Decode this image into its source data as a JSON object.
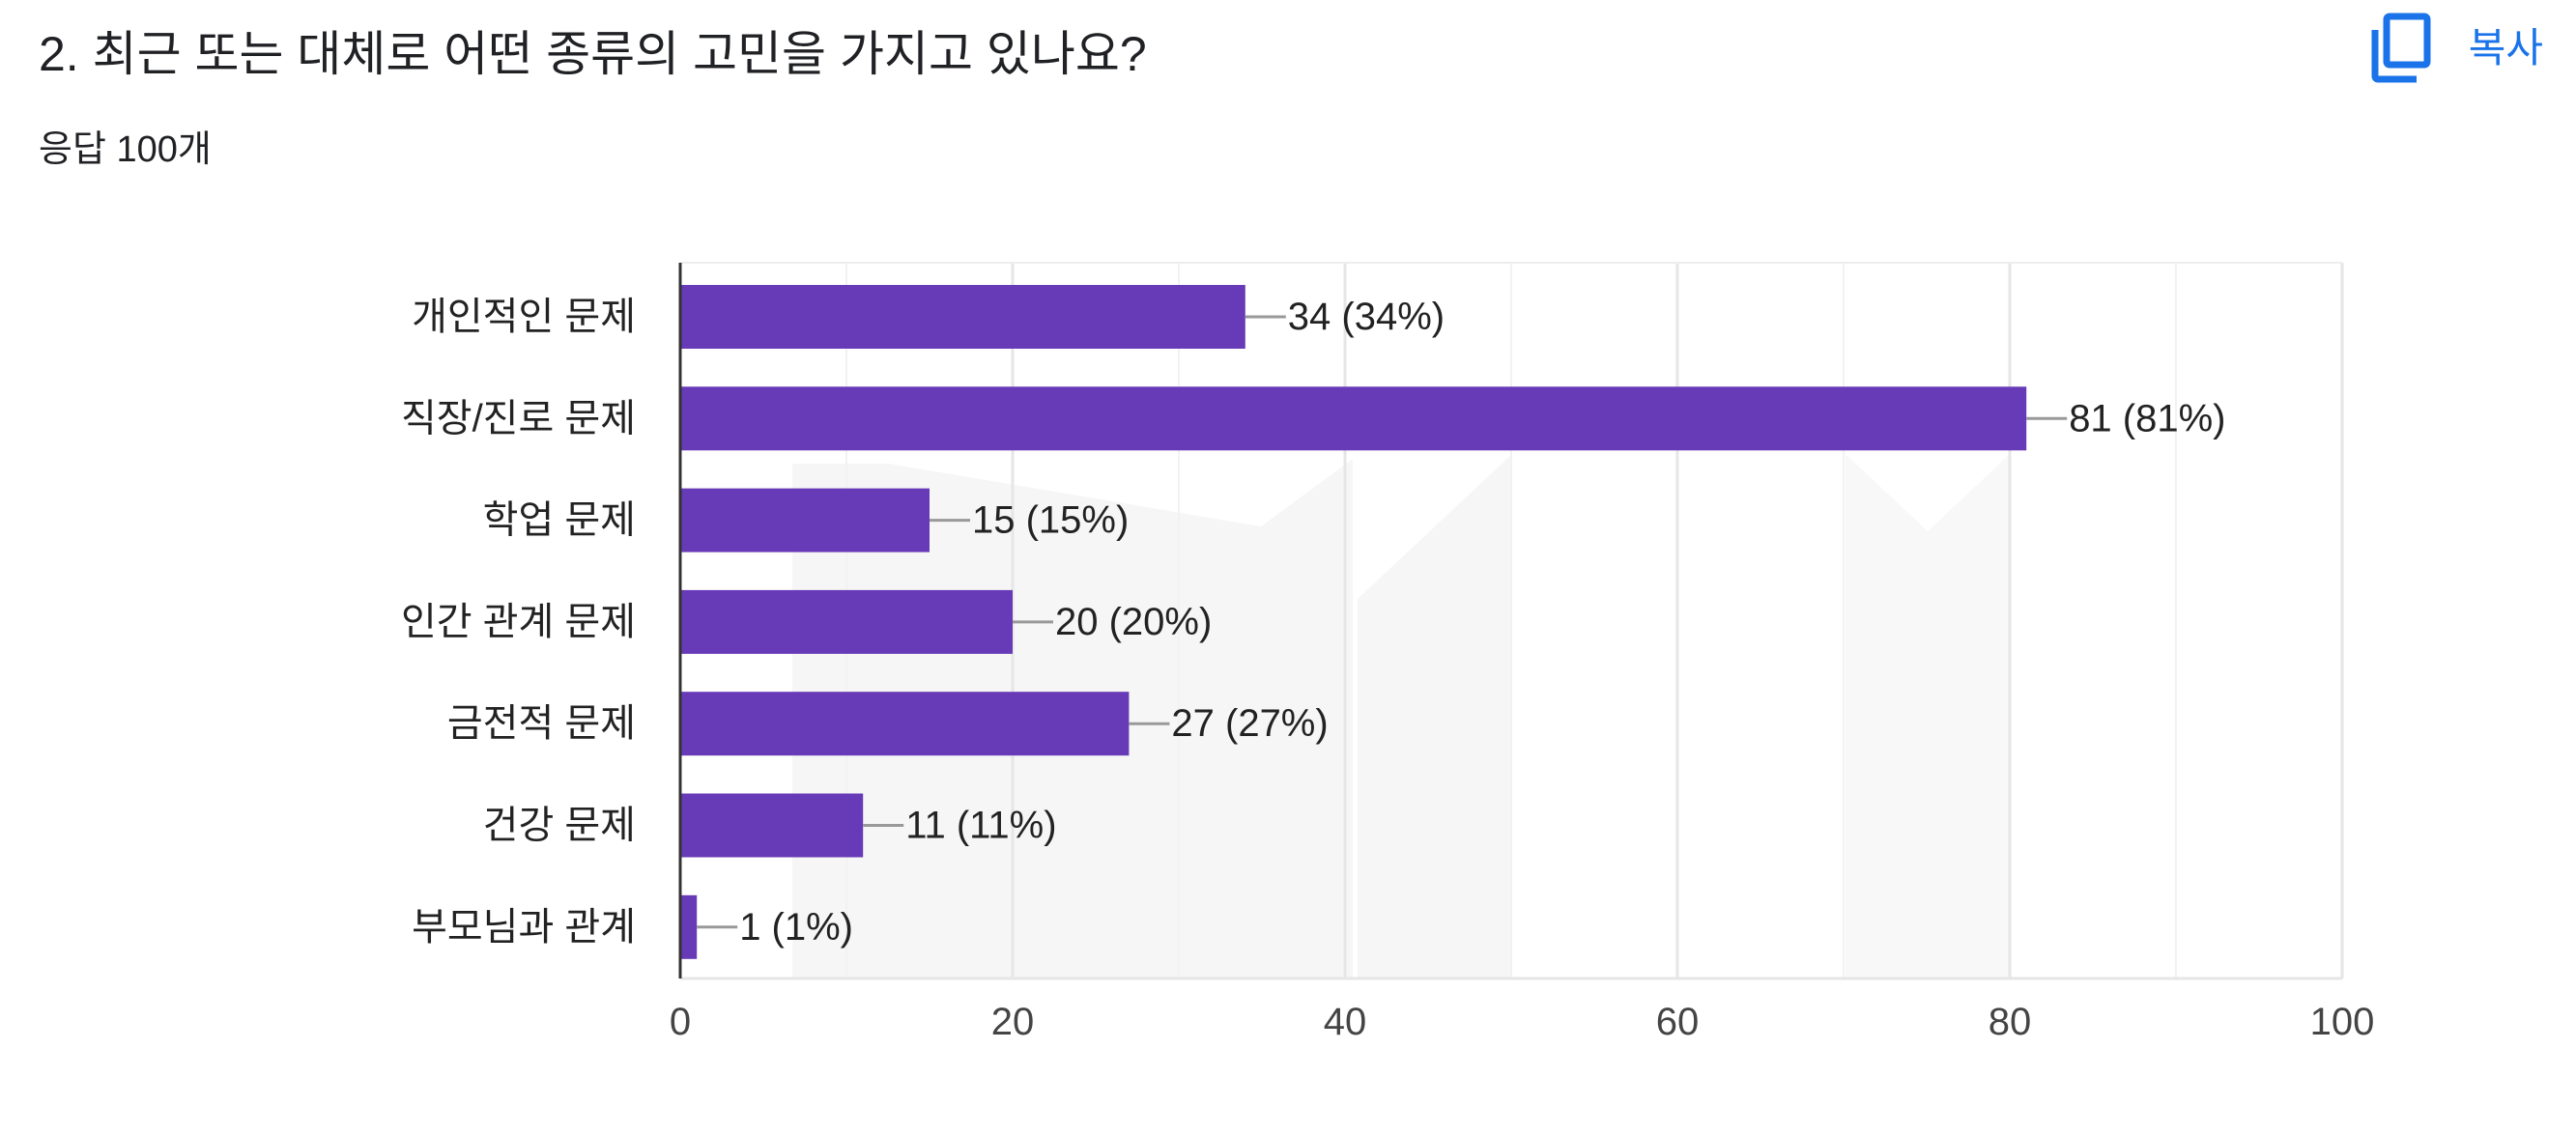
{
  "question": {
    "title": "2. 최근 또는 대체로 어떤 종류의 고민을 가지고 있나요?",
    "response_count": "응답 100개"
  },
  "toolbar": {
    "copy_label": "복사",
    "copy_icon": "copy-icon"
  },
  "colors": {
    "bar": "#673ab7",
    "accent": "#1a73e8"
  },
  "chart_data": {
    "type": "bar",
    "orientation": "horizontal",
    "categories": [
      "개인적인 문제",
      "직장/진로 문제",
      "학업 문제",
      "인간 관계 문제",
      "금전적 문제",
      "건강 문제",
      "부모님과 관계"
    ],
    "values": [
      34,
      81,
      15,
      20,
      27,
      11,
      1
    ],
    "data_labels": [
      "34 (34%)",
      "81 (81%)",
      "15 (15%)",
      "20 (20%)",
      "27 (27%)",
      "11 (11%)",
      "1 (1%)"
    ],
    "xlim": [
      0,
      100
    ],
    "xticks": [
      0,
      20,
      40,
      60,
      80,
      100
    ],
    "grid": true,
    "title": "",
    "xlabel": "",
    "ylabel": ""
  }
}
